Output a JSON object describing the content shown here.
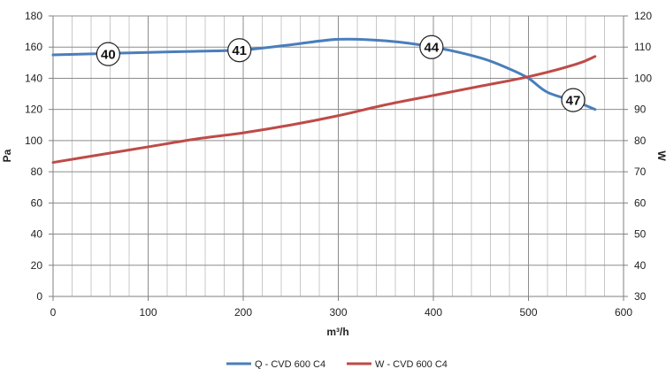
{
  "chart_data": {
    "type": "line",
    "xlabel": "m³/h",
    "ylabel_left": "Pa",
    "ylabel_right": "W",
    "xlim": [
      0,
      600
    ],
    "ylim_left": [
      0,
      180
    ],
    "ylim_right": [
      30,
      120
    ],
    "x_ticks": [
      "0",
      "100",
      "200",
      "300",
      "400",
      "500",
      "600"
    ],
    "y_ticks_left": [
      "0",
      "20",
      "40",
      "60",
      "80",
      "100",
      "120",
      "140",
      "160",
      "180"
    ],
    "y_ticks_right": [
      "30",
      "40",
      "50",
      "60",
      "70",
      "80",
      "90",
      "100",
      "110",
      "120"
    ],
    "grid": true,
    "legend_position": "bottom",
    "series": [
      {
        "name": "Q - CVD 600 C4",
        "axis": "left",
        "color": "#4a7ebb",
        "x": [
          0,
          50,
          100,
          150,
          200,
          250,
          300,
          350,
          400,
          450,
          480,
          500,
          520,
          550,
          570
        ],
        "y": [
          155,
          155.8,
          156.6,
          157.3,
          158.2,
          161.5,
          165,
          164,
          160,
          153,
          146,
          140,
          131,
          125,
          120
        ]
      },
      {
        "name": "W - CVD 600 C4",
        "axis": "right",
        "color": "#be4b48",
        "x": [
          0,
          50,
          100,
          150,
          200,
          250,
          300,
          350,
          400,
          450,
          500,
          550,
          570
        ],
        "y": [
          73,
          75.5,
          78,
          80.5,
          82.5,
          85,
          88,
          91.5,
          94.5,
          97.5,
          100.5,
          104.5,
          107
        ]
      }
    ],
    "annotations": [
      {
        "label": "40",
        "x": 58,
        "y": 155.5
      },
      {
        "label": "41",
        "x": 196,
        "y": 158
      },
      {
        "label": "44",
        "x": 398,
        "y": 160
      },
      {
        "label": "47",
        "x": 547,
        "y": 126
      }
    ]
  }
}
